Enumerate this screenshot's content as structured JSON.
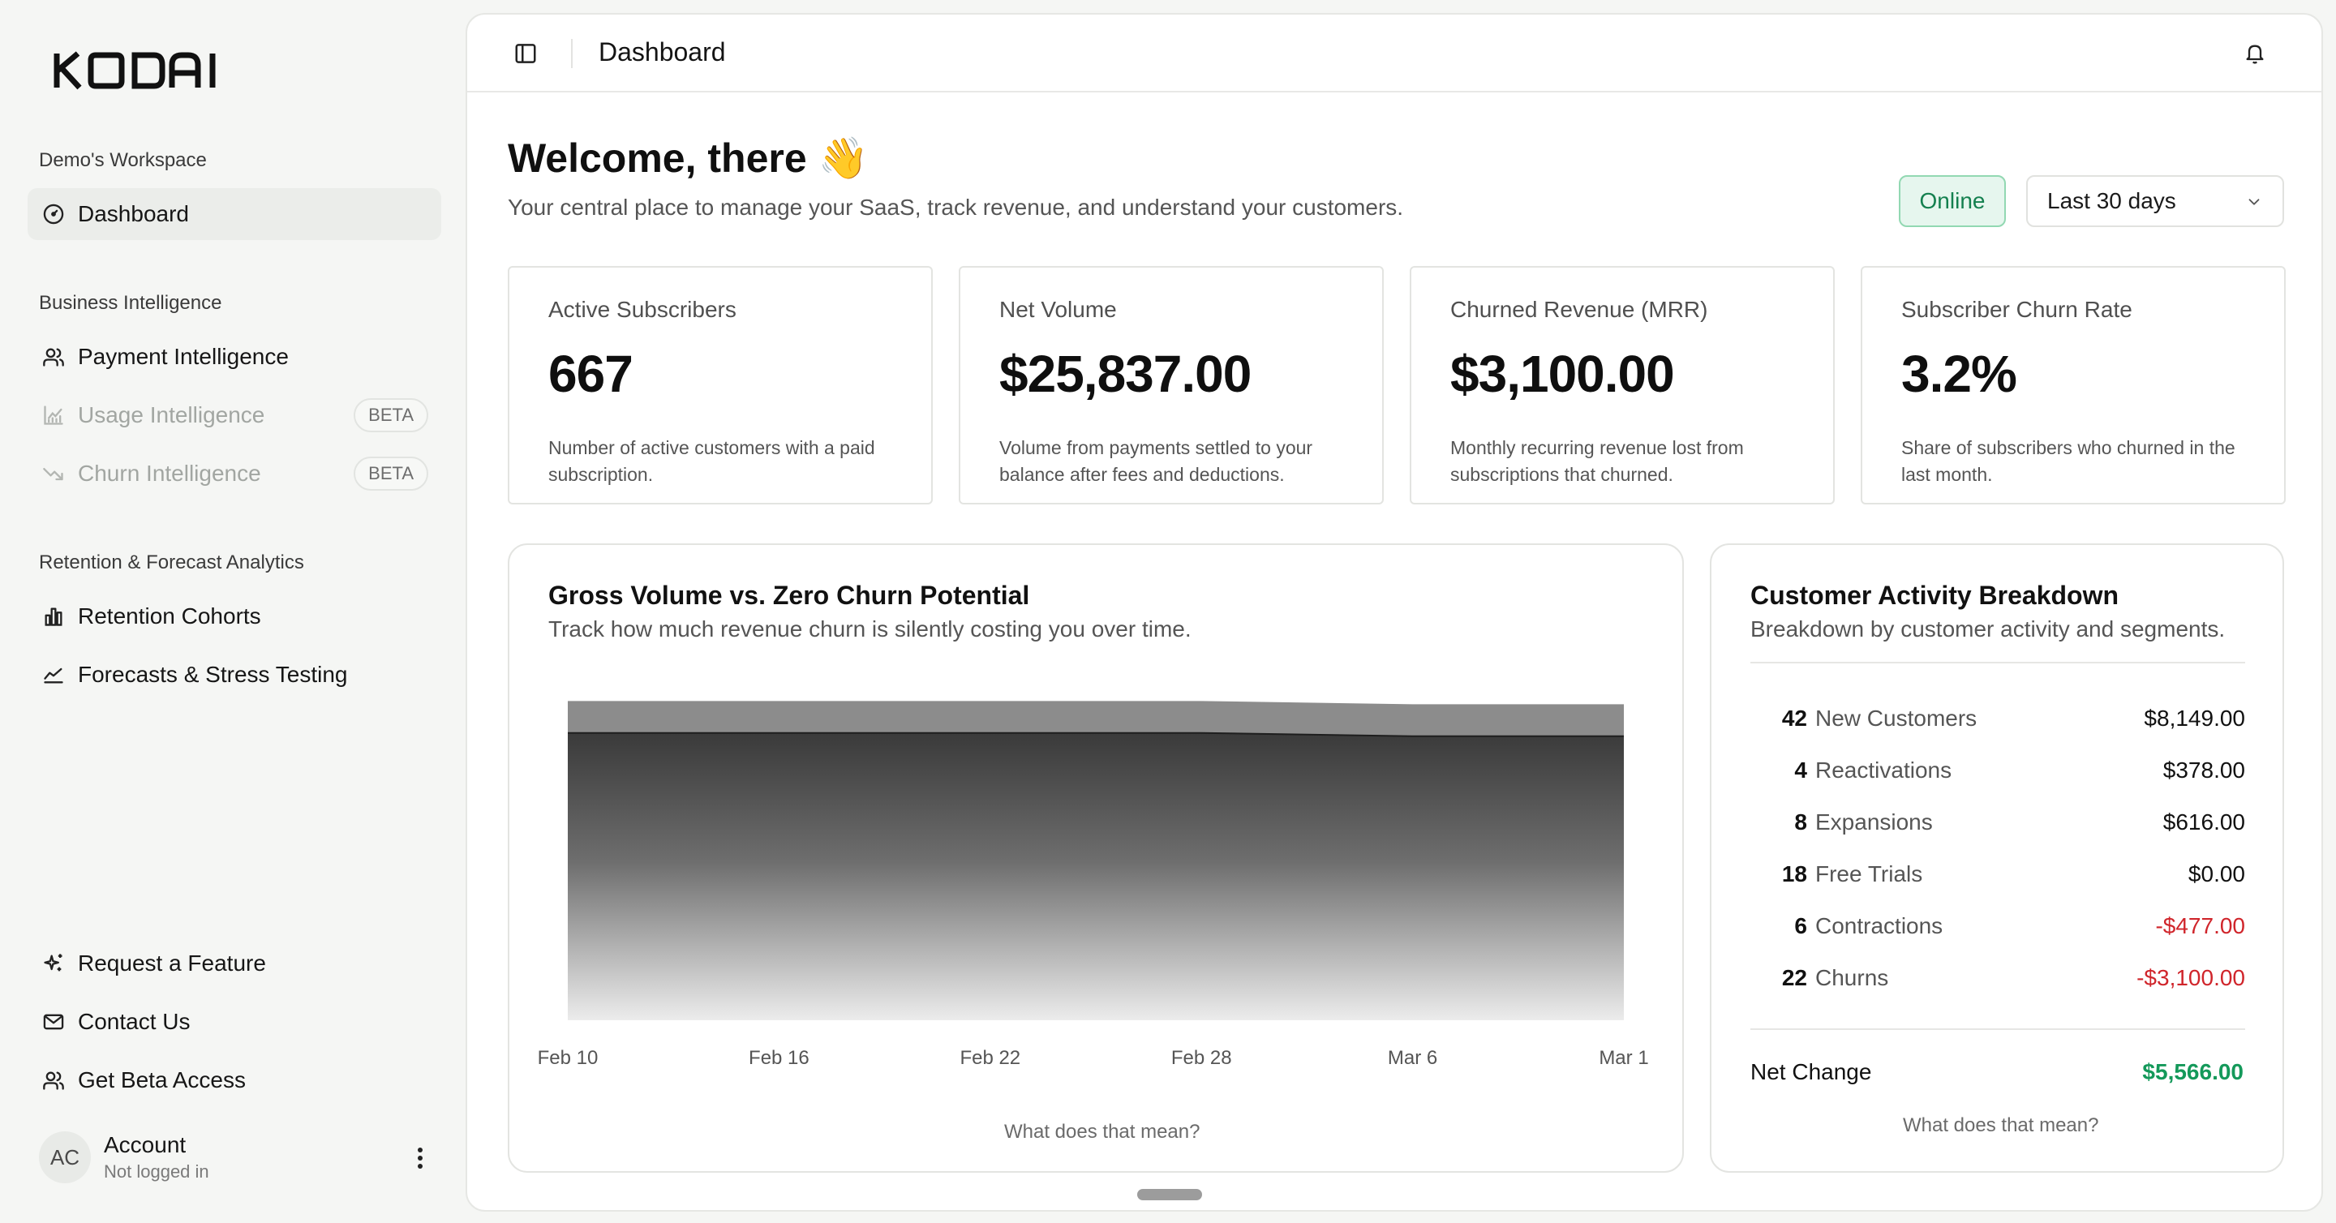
{
  "brand": {
    "logo_text": "KODAI"
  },
  "sidebar": {
    "workspace_label": "Demo's Workspace",
    "dashboard_label": "Dashboard",
    "bi_section_label": "Business Intelligence",
    "bi_items": [
      {
        "label": "Payment Intelligence",
        "icon": "users-icon",
        "enabled": true
      },
      {
        "label": "Usage Intelligence",
        "icon": "chart-icon",
        "enabled": false,
        "badge": "BETA"
      },
      {
        "label": "Churn Intelligence",
        "icon": "trend-down-icon",
        "enabled": false,
        "badge": "BETA"
      }
    ],
    "rf_section_label": "Retention & Forecast Analytics",
    "rf_items": [
      {
        "label": "Retention Cohorts",
        "icon": "bar-chart-icon"
      },
      {
        "label": "Forecasts & Stress Testing",
        "icon": "area-chart-icon"
      }
    ],
    "footer_items": [
      {
        "label": "Request a Feature",
        "icon": "sparkles-icon"
      },
      {
        "label": "Contact Us",
        "icon": "mail-icon"
      },
      {
        "label": "Get Beta Access",
        "icon": "users-icon"
      }
    ],
    "account": {
      "initials": "AC",
      "name": "Account",
      "status": "Not logged in"
    }
  },
  "header": {
    "title": "Dashboard"
  },
  "welcome": {
    "heading": "Welcome, there 👋",
    "subtitle": "Your central place to manage your SaaS, track revenue, and understand your customers."
  },
  "status_badge": "Online",
  "date_range": {
    "selected": "Last 30 days"
  },
  "metrics": [
    {
      "title": "Active Subscribers",
      "value": "667",
      "description": "Number of active customers with a paid subscription."
    },
    {
      "title": "Net Volume",
      "value": "$25,837.00",
      "description": "Volume from payments settled to your balance after fees and deductions."
    },
    {
      "title": "Churned Revenue (MRR)",
      "value": "$3,100.00",
      "description": "Monthly recurring revenue lost from subscriptions that churned."
    },
    {
      "title": "Subscriber Churn Rate",
      "value": "3.2%",
      "description": "Share of subscribers who churned in the last month."
    }
  ],
  "gross_volume_card": {
    "title": "Gross Volume vs. Zero Churn Potential",
    "subtitle": "Track how much revenue churn is silently costing you over time.",
    "help_link": "What does that mean?"
  },
  "chart_data": {
    "type": "area",
    "title": "Gross Volume vs. Zero Churn Potential",
    "x": [
      "Feb 10",
      "Feb 16",
      "Feb 22",
      "Feb 28",
      "Mar 6",
      "Mar 1"
    ],
    "series": [
      {
        "values": [
          1.0,
          1.0,
          1.0,
          1.0,
          0.99,
          0.99
        ],
        "color": "#8c8c8c"
      },
      {
        "values": [
          0.9,
          0.9,
          0.9,
          0.9,
          0.89,
          0.89
        ],
        "color": "#3a3a3a"
      }
    ],
    "grid": false,
    "legend": "none"
  },
  "activity_card": {
    "title": "Customer Activity Breakdown",
    "subtitle": "Breakdown by customer activity and segments.",
    "rows": [
      {
        "count": "42",
        "label": "New Customers",
        "amount": "$8,149.00",
        "negative": false
      },
      {
        "count": "4",
        "label": "Reactivations",
        "amount": "$378.00",
        "negative": false
      },
      {
        "count": "8",
        "label": "Expansions",
        "amount": "$616.00",
        "negative": false
      },
      {
        "count": "18",
        "label": "Free Trials",
        "amount": "$0.00",
        "negative": false
      },
      {
        "count": "6",
        "label": "Contractions",
        "amount": "-$477.00",
        "negative": true
      },
      {
        "count": "22",
        "label": "Churns",
        "amount": "-$3,100.00",
        "negative": true
      }
    ],
    "net_label": "Net Change",
    "net_amount": "$5,566.00",
    "help_link": "What does that mean?"
  },
  "colors": {
    "positive": "#14995a",
    "negative": "#d0252b",
    "online_bg": "#e6f6ee",
    "online_text": "#14804f"
  }
}
